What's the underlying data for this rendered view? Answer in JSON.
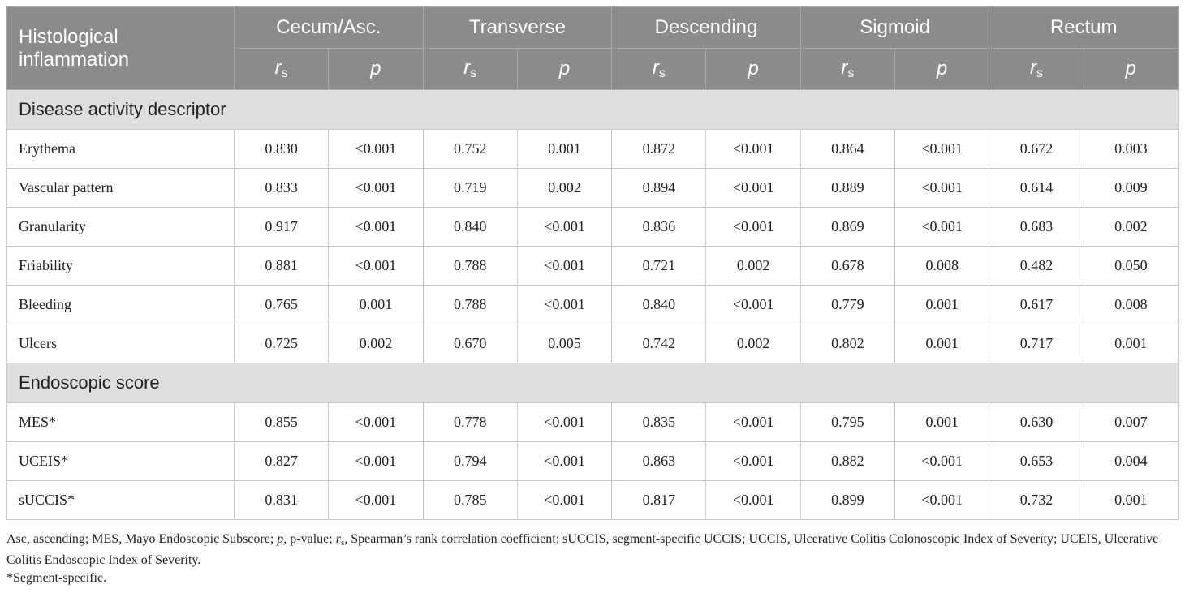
{
  "header": {
    "row_label": "Histological inflammation",
    "groups": [
      "Cecum/Asc.",
      "Transverse",
      "Descending",
      "Sigmoid",
      "Rectum"
    ],
    "stat_labels": [
      {
        "main": "r",
        "sub": "s"
      },
      {
        "main": "p"
      }
    ]
  },
  "sections": [
    {
      "title": "Disease activity descriptor",
      "rows": [
        {
          "label": "Erythema",
          "values": [
            "0.830",
            "<0.001",
            "0.752",
            "0.001",
            "0.872",
            "<0.001",
            "0.864",
            "<0.001",
            "0.672",
            "0.003"
          ]
        },
        {
          "label": "Vascular pattern",
          "values": [
            "0.833",
            "<0.001",
            "0.719",
            "0.002",
            "0.894",
            "<0.001",
            "0.889",
            "<0.001",
            "0.614",
            "0.009"
          ]
        },
        {
          "label": "Granularity",
          "values": [
            "0.917",
            "<0.001",
            "0.840",
            "<0.001",
            "0.836",
            "<0.001",
            "0.869",
            "<0.001",
            "0.683",
            "0.002"
          ]
        },
        {
          "label": "Friability",
          "values": [
            "0.881",
            "<0.001",
            "0.788",
            "<0.001",
            "0.721",
            "0.002",
            "0.678",
            "0.008",
            "0.482",
            "0.050"
          ]
        },
        {
          "label": "Bleeding",
          "values": [
            "0.765",
            "0.001",
            "0.788",
            "<0.001",
            "0.840",
            "<0.001",
            "0.779",
            "0.001",
            "0.617",
            "0.008"
          ]
        },
        {
          "label": "Ulcers",
          "values": [
            "0.725",
            "0.002",
            "0.670",
            "0.005",
            "0.742",
            "0.002",
            "0.802",
            "0.001",
            "0.717",
            "0.001"
          ]
        }
      ]
    },
    {
      "title": "Endoscopic score",
      "rows": [
        {
          "label": "MES*",
          "values": [
            "0.855",
            "<0.001",
            "0.778",
            "<0.001",
            "0.835",
            "<0.001",
            "0.795",
            "0.001",
            "0.630",
            "0.007"
          ]
        },
        {
          "label": "UCEIS*",
          "values": [
            "0.827",
            "<0.001",
            "0.794",
            "<0.001",
            "0.863",
            "<0.001",
            "0.882",
            "<0.001",
            "0.653",
            "0.004"
          ]
        },
        {
          "label": "sUCCIS*",
          "values": [
            "0.831",
            "<0.001",
            "0.785",
            "<0.001",
            "0.817",
            "<0.001",
            "0.899",
            "<0.001",
            "0.732",
            "0.001"
          ]
        }
      ]
    }
  ],
  "footnotes": [
    [
      {
        "text": "Asc, ascending; MES, Mayo Endoscopic Subscore; "
      },
      {
        "text": "p",
        "italic": true
      },
      {
        "text": ", p-value; "
      },
      {
        "text": "r",
        "italic": true
      },
      {
        "text": "s",
        "sub": true
      },
      {
        "text": ", Spearman’s rank correlation coefficient; sUCCIS, segment-specific UCCIS; UCCIS, Ulcerative Colitis Colonoscopic Index of Severity; UCEIS, Ulcerative Colitis Endoscopic Index of Severity."
      }
    ],
    [
      {
        "text": "*Segment-specific."
      }
    ]
  ]
}
